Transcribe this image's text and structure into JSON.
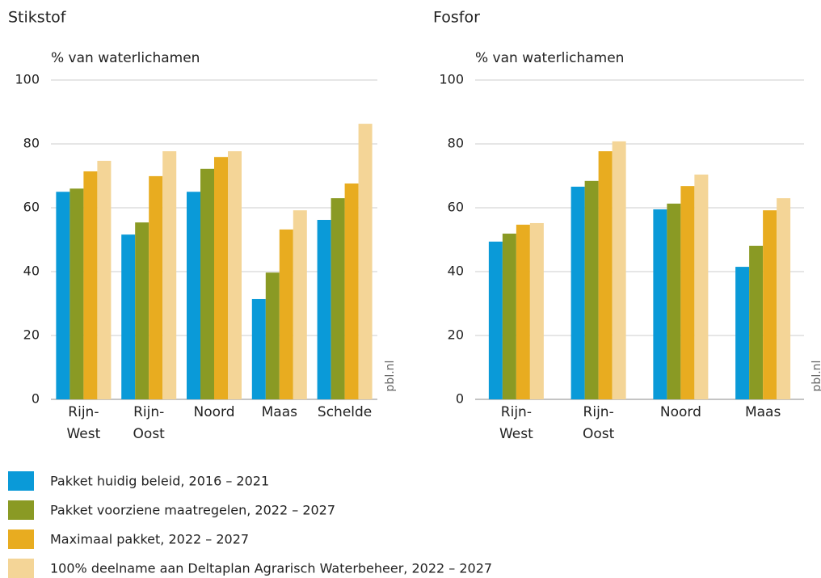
{
  "legend": [
    {
      "name": "Pakket huidig beleid, 2016 – 2021",
      "color": "#0a9ad8"
    },
    {
      "name": "Pakket voorziene maatregelen, 2022 – 2027",
      "color": "#8a9a24"
    },
    {
      "name": "Maximaal pakket, 2022 – 2027",
      "color": "#e8ac20"
    },
    {
      "name": "100% deelname aan Deltaplan Agrarisch Waterbeheer, 2022 – 2027",
      "color": "#f4d597"
    }
  ],
  "chart_data": [
    {
      "type": "bar",
      "title": "Stikstof",
      "y_label": "% van waterlichamen",
      "source": "pbl.nl",
      "categories": [
        "Rijn-\nWest",
        "Rijn-\nOost",
        "Noord",
        "Maas",
        "Schelde"
      ],
      "series": [
        {
          "values": [
            65,
            51.6,
            65,
            31.4,
            56.2
          ]
        },
        {
          "values": [
            66,
            55.4,
            72.2,
            39.7,
            63
          ]
        },
        {
          "values": [
            71.4,
            69.9,
            75.9,
            53.2,
            67.6
          ]
        },
        {
          "values": [
            74.7,
            77.7,
            77.7,
            59.2,
            86.3
          ]
        }
      ],
      "ylim": [
        0,
        100
      ],
      "yticks": [
        0,
        20,
        40,
        60,
        80,
        100
      ],
      "grid": true
    },
    {
      "type": "bar",
      "title": "Fosfor",
      "y_label": "% van waterlichamen",
      "source": "pbl.nl",
      "categories": [
        "Rijn-\nWest",
        "Rijn-\nOost",
        "Noord",
        "Maas"
      ],
      "series": [
        {
          "values": [
            49.4,
            66.6,
            59.5,
            41.5
          ]
        },
        {
          "values": [
            51.9,
            68.4,
            61.3,
            48.1
          ]
        },
        {
          "values": [
            54.7,
            77.7,
            66.8,
            59.2
          ]
        },
        {
          "values": [
            55.2,
            80.8,
            70.4,
            63
          ]
        }
      ],
      "ylim": [
        0,
        100
      ],
      "yticks": [
        0,
        20,
        40,
        60,
        80,
        100
      ],
      "grid": true
    }
  ]
}
